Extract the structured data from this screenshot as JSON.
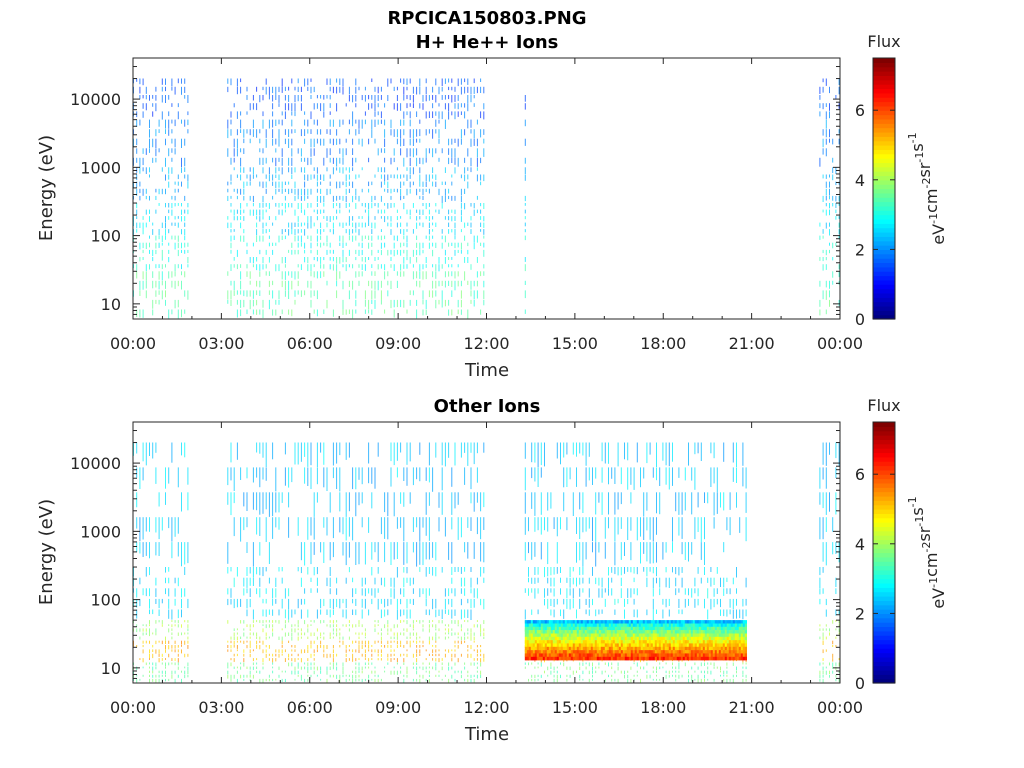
{
  "figure_title": "RPCICA150803.PNG",
  "chart_data": [
    {
      "type": "heatmap",
      "title": "H+ He++ Ions",
      "xlabel": "Time",
      "ylabel": "Energy (eV)",
      "x_ticks": [
        "00:00",
        "03:00",
        "06:00",
        "09:00",
        "12:00",
        "15:00",
        "18:00",
        "21:00",
        "00:00"
      ],
      "x_range_hours": [
        0,
        24
      ],
      "y_ticks": [
        "10",
        "100",
        "1000",
        "10000"
      ],
      "y_tick_values": [
        10,
        100,
        1000,
        10000
      ],
      "y_scale": "log",
      "ylim": [
        6,
        40000
      ],
      "colorbar": {
        "label": "Flux",
        "units_parts": [
          "eV",
          "-1",
          "cm",
          "-2",
          "sr",
          "-1",
          "s",
          "-1"
        ],
        "ticks": [
          "0",
          "2",
          "4",
          "6"
        ],
        "range": [
          0,
          7.5
        ],
        "colormap": "jet"
      },
      "observation_intervals_hours": [
        [
          0.0,
          1.9
        ],
        [
          3.2,
          11.9
        ],
        [
          13.3,
          13.4
        ],
        [
          23.3,
          24.0
        ]
      ],
      "flux_by_energy_band": [
        {
          "energy_eV": [
            5000,
            20000
          ],
          "flux": 1.6
        },
        {
          "energy_eV": [
            1000,
            5000
          ],
          "flux": 1.9
        },
        {
          "energy_eV": [
            300,
            1000
          ],
          "flux": 2.2
        },
        {
          "energy_eV": [
            100,
            300
          ],
          "flux": 2.6
        },
        {
          "energy_eV": [
            30,
            100
          ],
          "flux": 3.0
        },
        {
          "energy_eV": [
            6,
            30
          ],
          "flux": 3.4
        }
      ],
      "grid": false
    },
    {
      "type": "heatmap",
      "title": "Other Ions",
      "xlabel": "Time",
      "ylabel": "Energy (eV)",
      "x_ticks": [
        "00:00",
        "03:00",
        "06:00",
        "09:00",
        "12:00",
        "15:00",
        "18:00",
        "21:00",
        "00:00"
      ],
      "x_range_hours": [
        0,
        24
      ],
      "y_ticks": [
        "10",
        "100",
        "1000",
        "10000"
      ],
      "y_tick_values": [
        10,
        100,
        1000,
        10000
      ],
      "y_scale": "log",
      "ylim": [
        6,
        40000
      ],
      "colorbar": {
        "label": "Flux",
        "units_parts": [
          "eV",
          "-1",
          "cm",
          "-2",
          "sr",
          "-1",
          "s",
          "-1"
        ],
        "ticks": [
          "0",
          "2",
          "4",
          "6"
        ],
        "range": [
          0,
          7.5
        ],
        "colormap": "jet"
      },
      "observation_intervals_hours": [
        [
          0.0,
          1.9
        ],
        [
          3.2,
          11.9
        ],
        [
          13.3,
          20.8
        ],
        [
          23.3,
          24.0
        ]
      ],
      "flux_by_energy_band": [
        {
          "energy_eV": [
            300,
            20000
          ],
          "flux": 2.4
        },
        {
          "energy_eV": [
            50,
            300
          ],
          "flux": 2.6
        },
        {
          "energy_eV": [
            25,
            50
          ],
          "flux": 4.0
        },
        {
          "energy_eV": [
            12,
            25
          ],
          "flux": 5.2
        },
        {
          "energy_eV": [
            6,
            12
          ],
          "flux": 3.6
        }
      ],
      "enhanced_band": {
        "time_hours": [
          13.3,
          20.8
        ],
        "energy_eV": [
          13,
          50
        ],
        "flux_peak": 6.2
      },
      "grid": false
    }
  ]
}
